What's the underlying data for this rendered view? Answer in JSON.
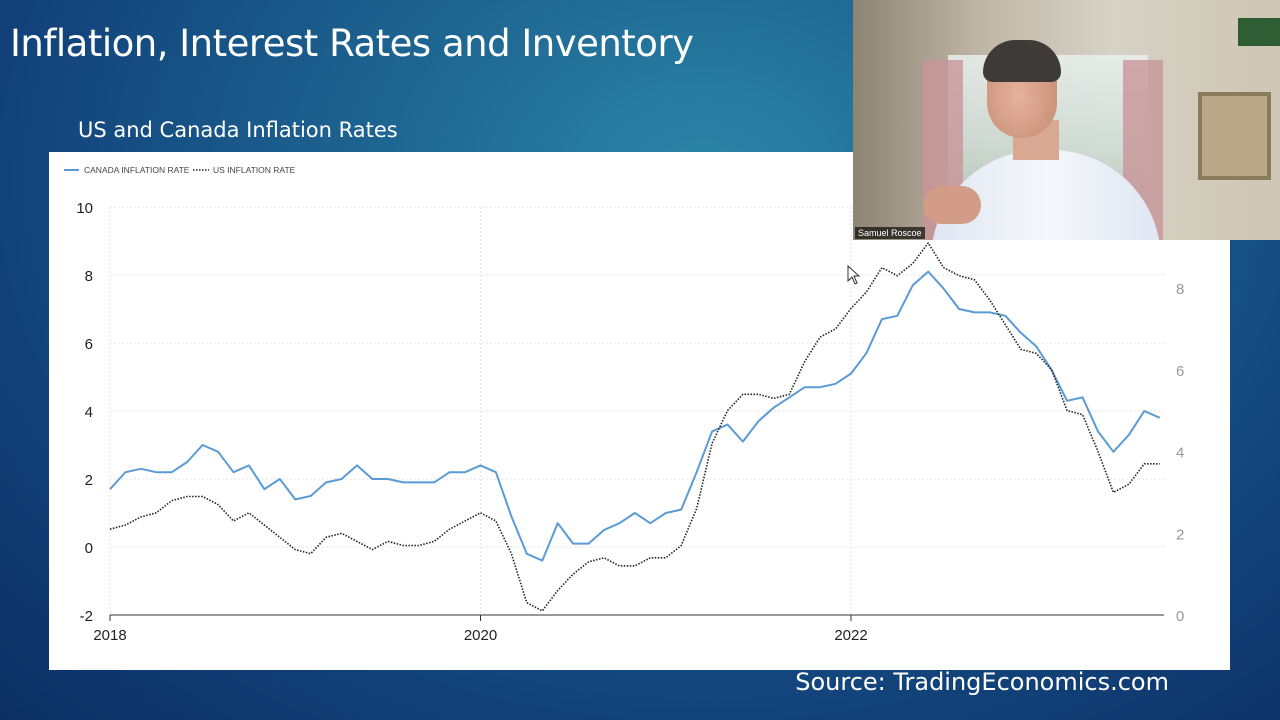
{
  "slide": {
    "title": "Inflation, Interest Rates and Inventory",
    "subtitle": "US and Canada Inflation Rates",
    "source": "Source: TradingEconomics.com"
  },
  "video": {
    "participant_name": "Samuel Roscoe"
  },
  "colors": {
    "canada": "#5b9bd5",
    "us": "#222222",
    "slide_bg": "#1a5a8a"
  },
  "chart_data": {
    "type": "line",
    "x_start": "2018-01",
    "x_end": "2023-09",
    "x_ticks": [
      "2018",
      "2020",
      "2022"
    ],
    "left_axis": {
      "ylim": [
        -2,
        10
      ],
      "ticks": [
        "-2",
        "0",
        "2",
        "4",
        "6",
        "8",
        "10"
      ]
    },
    "right_axis": {
      "ylim": [
        0,
        9
      ],
      "ticks": [
        "0",
        "2",
        "4",
        "6",
        "8"
      ]
    },
    "grid": true,
    "legend_position": "top-left",
    "series": [
      {
        "name": "CANADA INFLATION RATE",
        "axis": "left",
        "style": "solid",
        "values": [
          1.7,
          2.2,
          2.3,
          2.2,
          2.2,
          2.5,
          3.0,
          2.8,
          2.2,
          2.4,
          1.7,
          2.0,
          1.4,
          1.5,
          1.9,
          2.0,
          2.4,
          2.0,
          2.0,
          1.9,
          1.9,
          1.9,
          2.2,
          2.2,
          2.4,
          2.2,
          0.9,
          -0.2,
          -0.4,
          0.7,
          0.1,
          0.1,
          0.5,
          0.7,
          1.0,
          0.7,
          1.0,
          1.1,
          2.2,
          3.4,
          3.6,
          3.1,
          3.7,
          4.1,
          4.4,
          4.7,
          4.7,
          4.8,
          5.1,
          5.7,
          6.7,
          6.8,
          7.7,
          8.1,
          7.6,
          7.0,
          6.9,
          6.9,
          6.8,
          6.3,
          5.9,
          5.2,
          4.3,
          4.4,
          3.4,
          2.8,
          3.3,
          4.0,
          3.8
        ]
      },
      {
        "name": "US INFLATION RATE",
        "axis": "right",
        "style": "dotted",
        "values": [
          2.1,
          2.2,
          2.4,
          2.5,
          2.8,
          2.9,
          2.9,
          2.7,
          2.3,
          2.5,
          2.2,
          1.9,
          1.6,
          1.5,
          1.9,
          2.0,
          1.8,
          1.6,
          1.8,
          1.7,
          1.7,
          1.8,
          2.1,
          2.3,
          2.5,
          2.3,
          1.5,
          0.3,
          0.1,
          0.6,
          1.0,
          1.3,
          1.4,
          1.2,
          1.2,
          1.4,
          1.4,
          1.7,
          2.6,
          4.2,
          5.0,
          5.4,
          5.4,
          5.3,
          5.4,
          6.2,
          6.8,
          7.0,
          7.5,
          7.9,
          8.5,
          8.3,
          8.6,
          9.1,
          8.5,
          8.3,
          8.2,
          7.7,
          7.1,
          6.5,
          6.4,
          6.0,
          5.0,
          4.9,
          4.0,
          3.0,
          3.2,
          3.7,
          3.7
        ]
      }
    ]
  }
}
